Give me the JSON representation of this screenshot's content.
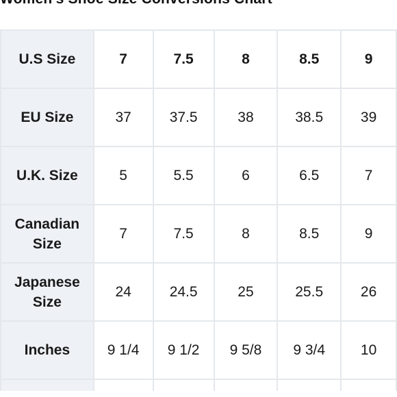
{
  "title": "Women's Shoe Size Conversions Chart",
  "rows": [
    {
      "label": "U.S Size",
      "values": [
        "7",
        "7.5",
        "8",
        "8.5",
        "9"
      ]
    },
    {
      "label": "EU Size",
      "values": [
        "37",
        "37.5",
        "38",
        "38.5",
        "39"
      ]
    },
    {
      "label": "U.K. Size",
      "values": [
        "5",
        "5.5",
        "6",
        "6.5",
        "7"
      ]
    },
    {
      "label": "Canadian Size",
      "values": [
        "7",
        "7.5",
        "8",
        "8.5",
        "9"
      ]
    },
    {
      "label": "Japanese Size",
      "values": [
        "24",
        "24.5",
        "25",
        "25.5",
        "26"
      ]
    },
    {
      "label": "Inches",
      "values": [
        "9 1/4",
        "9 1/2",
        "9 5/8",
        "9 3/4",
        "10"
      ]
    }
  ]
}
